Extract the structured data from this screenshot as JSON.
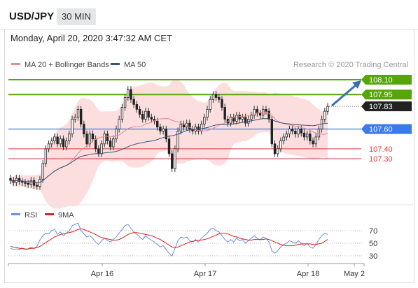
{
  "header": {
    "symbol": "USD/JPY",
    "timeframe": "30 MIN"
  },
  "datetime": "Monday, April 20, 2020 3:47:32 AM CET",
  "credit": "Research © 2020 Trading Central",
  "colors": {
    "bullish": "#56a60a",
    "current": "#222222",
    "support_blue": "#3b7ae8",
    "support_red": "#d93b3b",
    "bollinger_fill": "#fbd3d3",
    "ma20": "#e48c8c",
    "ma50": "#33557a",
    "rsi": "#6a8fe0",
    "rsi_ma": "#e02020",
    "arrow": "#3a6fb3"
  },
  "chart_data": [
    {
      "type": "candlestick",
      "legend": [
        {
          "name": "MA 20 + Bollinger Bands",
          "color": "#f08a8a"
        },
        {
          "name": "MA 50",
          "color": "#33557a"
        }
      ],
      "levels": [
        {
          "value": 108.1,
          "label": "108.10",
          "style": "resistance"
        },
        {
          "value": 107.95,
          "label": "107.95",
          "style": "resistance"
        },
        {
          "value": 107.83,
          "label": "107.83",
          "style": "current"
        },
        {
          "value": 107.6,
          "label": "107.60",
          "style": "pivot"
        },
        {
          "value": 107.4,
          "label": "107.40",
          "style": "support"
        },
        {
          "value": 107.3,
          "label": "107.30",
          "style": "support"
        }
      ],
      "ylim": [
        106.97,
        108.18
      ],
      "x_ticks": [
        "Apr 16",
        "Apr 17",
        "Apr 18",
        "May 2"
      ],
      "close_series": [
        107.08,
        107.06,
        107.1,
        107.07,
        107.06,
        107.05,
        107.04,
        107.08,
        107.03,
        107.02,
        107.09,
        107.25,
        107.4,
        107.45,
        107.48,
        107.52,
        107.45,
        107.5,
        107.42,
        107.48,
        107.55,
        107.7,
        107.72,
        107.8,
        107.65,
        107.55,
        107.45,
        107.55,
        107.5,
        107.4,
        107.35,
        107.45,
        107.55,
        107.48,
        107.42,
        107.5,
        107.6,
        107.7,
        107.82,
        107.92,
        108.0,
        107.9,
        107.85,
        107.8,
        107.75,
        107.7,
        107.78,
        107.72,
        107.7,
        107.68,
        107.62,
        107.58,
        107.6,
        107.5,
        107.35,
        107.2,
        107.4,
        107.58,
        107.65,
        107.62,
        107.66,
        107.6,
        107.58,
        107.62,
        107.58,
        107.65,
        107.72,
        107.8,
        107.9,
        107.95,
        107.92,
        107.9,
        107.82,
        107.7,
        107.66,
        107.72,
        107.68,
        107.74,
        107.7,
        107.72,
        107.66,
        107.7,
        107.74,
        107.8,
        107.76,
        107.74,
        107.8,
        107.78,
        107.7,
        107.45,
        107.35,
        107.4,
        107.48,
        107.52,
        107.55,
        107.6,
        107.58,
        107.55,
        107.6,
        107.56,
        107.52,
        107.55,
        107.48,
        107.45,
        107.52,
        107.6,
        107.7,
        107.78,
        107.83
      ]
    },
    {
      "type": "line",
      "legend": [
        {
          "name": "RSI",
          "color": "#6a8fe0"
        },
        {
          "name": "9MA",
          "color": "#e02020"
        }
      ],
      "ylim": [
        20,
        85
      ],
      "y_ticks": [
        "70",
        "50",
        "30"
      ],
      "rsi": [
        42,
        40,
        41,
        40,
        42,
        40,
        41,
        44,
        42,
        45,
        55,
        62,
        66,
        65,
        70,
        72,
        64,
        68,
        62,
        66,
        70,
        78,
        80,
        82,
        70,
        65,
        60,
        62,
        58,
        52,
        48,
        54,
        58,
        55,
        52,
        56,
        60,
        66,
        72,
        78,
        80,
        74,
        68,
        64,
        60,
        56,
        62,
        58,
        55,
        52,
        48,
        44,
        46,
        40,
        34,
        30,
        42,
        54,
        60,
        58,
        60,
        54,
        52,
        56,
        52,
        58,
        62,
        66,
        72,
        74,
        70,
        68,
        62,
        56,
        52,
        56,
        52,
        58,
        54,
        56,
        50,
        54,
        58,
        62,
        58,
        55,
        60,
        58,
        52,
        38,
        34,
        38,
        44,
        48,
        50,
        54,
        52,
        50,
        54,
        50,
        46,
        50,
        44,
        42,
        48,
        56,
        62,
        66,
        64
      ],
      "ma9": [
        45,
        44,
        43,
        42,
        42,
        41,
        41,
        42,
        42,
        43,
        45,
        48,
        51,
        54,
        57,
        60,
        62,
        64,
        65,
        66,
        67,
        68,
        70,
        72,
        73,
        72,
        70,
        68,
        66,
        64,
        61,
        59,
        58,
        57,
        56,
        55,
        55,
        56,
        58,
        61,
        64,
        66,
        67,
        67,
        66,
        65,
        64,
        63,
        62,
        60,
        58,
        56,
        53,
        50,
        47,
        44,
        43,
        44,
        46,
        48,
        50,
        52,
        53,
        54,
        55,
        55,
        56,
        57,
        59,
        61,
        63,
        65,
        66,
        66,
        65,
        63,
        61,
        60,
        58,
        57,
        56,
        55,
        55,
        56,
        56,
        56,
        56,
        57,
        56,
        54,
        52,
        50,
        48,
        47,
        46,
        46,
        46,
        47,
        48,
        49,
        49,
        49,
        49,
        48,
        48,
        49,
        50,
        53,
        56
      ]
    }
  ]
}
